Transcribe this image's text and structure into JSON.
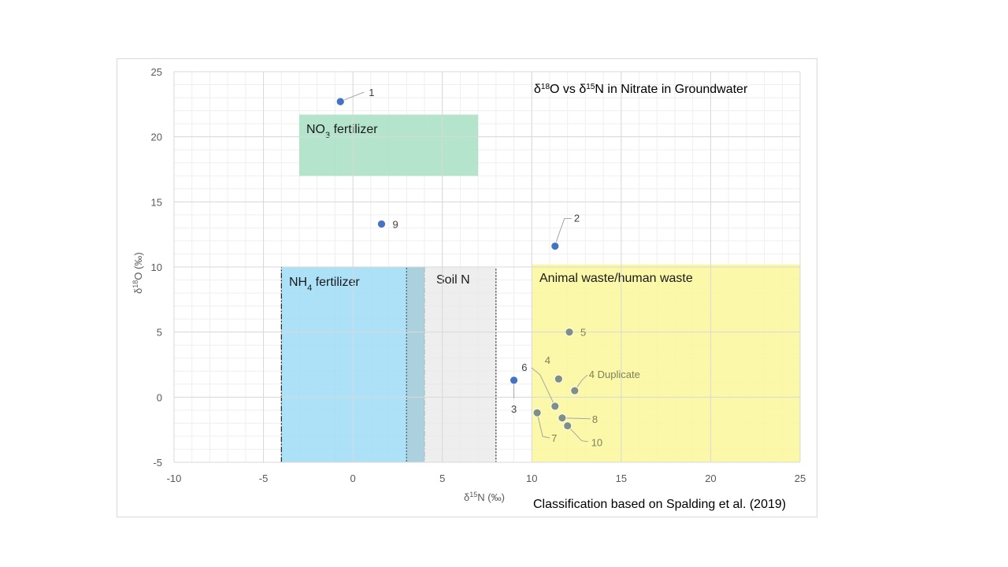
{
  "chart_data": {
    "type": "scatter",
    "title": {
      "pre": "δ",
      "sup1": "18",
      "mid": "O vs δ",
      "sup2": "15",
      "post": "N in Nitrate in Groundwater"
    },
    "xlabel": {
      "pre": "δ",
      "sup": "15",
      "post": "N (‰)"
    },
    "ylabel": {
      "pre": "δ",
      "sup": "18",
      "post": "O (‰)"
    },
    "xlim": [
      -10,
      25
    ],
    "ylim": [
      -5,
      25
    ],
    "x_ticks": [
      -10,
      -5,
      0,
      5,
      10,
      15,
      20,
      25
    ],
    "y_ticks": [
      -5,
      0,
      5,
      10,
      15,
      20,
      25
    ],
    "x_tick_labels": [
      "-10",
      "-5",
      "0",
      "5",
      "10",
      "15",
      "20",
      "25"
    ],
    "y_tick_labels": [
      "-5",
      "0",
      "5",
      "10",
      "15",
      "20",
      "25"
    ],
    "grid": true,
    "note": "Classification based on Spalding et al. (2019)",
    "zones": [
      {
        "name": "nh4-fertilizer",
        "label": {
          "pre": "NH",
          "sub": "4",
          "post": " fertilizer"
        },
        "x": [
          -4,
          4
        ],
        "y": [
          -5,
          10
        ],
        "color": "#9fdcf7",
        "border": "#000000",
        "label_color": "#1a1a1a"
      },
      {
        "name": "soil-n",
        "label": {
          "pre": "Soil N",
          "sub": "",
          "post": ""
        },
        "x": [
          3,
          8
        ],
        "y": [
          -5,
          10
        ],
        "color": "#e8e8e8",
        "border": "#000000",
        "label_color": "#1a1a1a"
      },
      {
        "name": "animal-waste",
        "label": {
          "pre": "Animal waste/human waste",
          "sub": "",
          "post": ""
        },
        "x": [
          10,
          25
        ],
        "y": [
          -5,
          10.2
        ],
        "color": "#fbf79a",
        "border": "none",
        "label_color": "#1a1a1a"
      },
      {
        "name": "no3-fertilizer",
        "label": {
          "pre": "NO",
          "sub": "3",
          "post": " fertilizer"
        },
        "x": [
          -3,
          7
        ],
        "y": [
          17,
          21.7
        ],
        "color": "#a8dfc3",
        "border": "none",
        "label_color": "#e03a1f"
      }
    ],
    "points": [
      {
        "label": "1",
        "x": -0.7,
        "y": 22.7,
        "color": "#4472c4",
        "label_color": "#404040"
      },
      {
        "label": "2",
        "x": 11.3,
        "y": 11.6,
        "color": "#4472c4",
        "label_color": "#404040"
      },
      {
        "label": "3",
        "x": 9.0,
        "y": 1.3,
        "color": "#4472c4",
        "label_color": "#404040"
      },
      {
        "label": "4",
        "x": 11.5,
        "y": 1.4,
        "color": "#7f8f86",
        "label_color": "#7f7f5a"
      },
      {
        "label": "4 Duplicate",
        "x": 12.4,
        "y": 0.5,
        "color": "#7f8f86",
        "label_color": "#7f7f5a"
      },
      {
        "label": "5",
        "x": 12.1,
        "y": 5.0,
        "color": "#7f8f86",
        "label_color": "#7f7f5a"
      },
      {
        "label": "6",
        "x": 11.3,
        "y": -0.7,
        "color": "#7f8f86",
        "label_color": "#404040"
      },
      {
        "label": "7",
        "x": 10.3,
        "y": -1.2,
        "color": "#7f8f86",
        "label_color": "#7f7f5a"
      },
      {
        "label": "8",
        "x": 11.7,
        "y": -1.6,
        "color": "#7f8f86",
        "label_color": "#7f7f5a"
      },
      {
        "label": "9",
        "x": 1.6,
        "y": 13.3,
        "color": "#4472c4",
        "label_color": "#404040"
      },
      {
        "label": "10",
        "x": 12.0,
        "y": -2.2,
        "color": "#7f8f86",
        "label_color": "#7f7f5a"
      }
    ]
  }
}
